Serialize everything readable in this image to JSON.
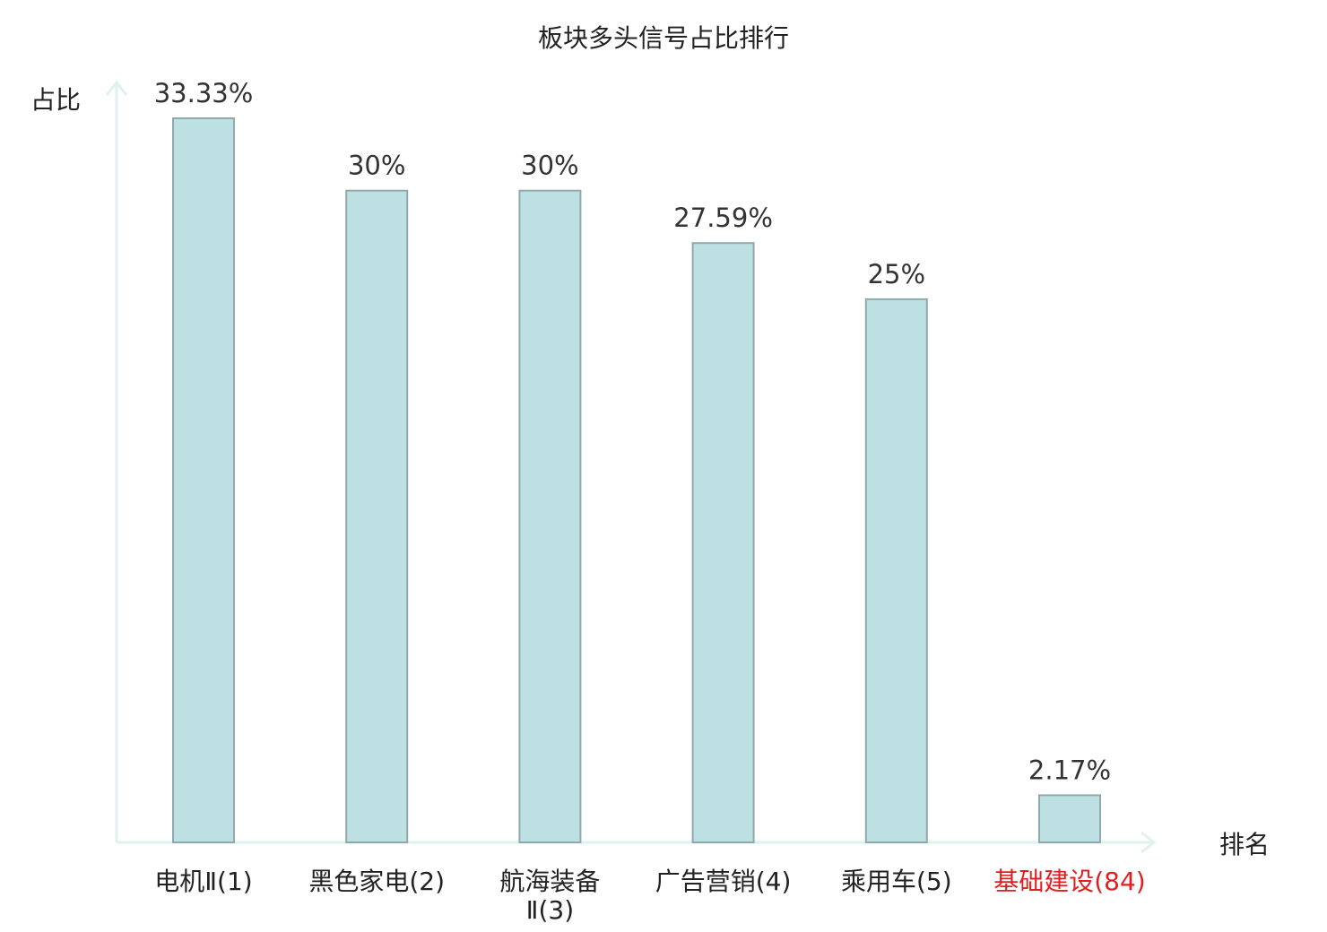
{
  "chart_data": {
    "type": "bar",
    "title": "板块多头信号占比排行",
    "ylabel": "占比",
    "xlabel": "排名",
    "ylim": [
      0,
      35
    ],
    "grid": false,
    "categories": [
      {
        "lines": [
          "电机Ⅱ(1)"
        ],
        "highlight": false
      },
      {
        "lines": [
          "黑色家电(2)"
        ],
        "highlight": false
      },
      {
        "lines": [
          "航海装备",
          "Ⅱ(3)"
        ],
        "highlight": false
      },
      {
        "lines": [
          "广告营销(4)"
        ],
        "highlight": false
      },
      {
        "lines": [
          "乘用车(5)"
        ],
        "highlight": false
      },
      {
        "lines": [
          "基础建设(84)"
        ],
        "highlight": true
      }
    ],
    "values": [
      33.33,
      30,
      30,
      27.59,
      25,
      2.17
    ],
    "value_labels": [
      "33.33%",
      "30%",
      "30%",
      "27.59%",
      "25%",
      "2.17%"
    ],
    "colors": {
      "bar_fill": "#bde0e3",
      "bar_stroke": "#8fa9ad",
      "axis": "#dff2f0",
      "highlight_label": "#e02020"
    }
  }
}
